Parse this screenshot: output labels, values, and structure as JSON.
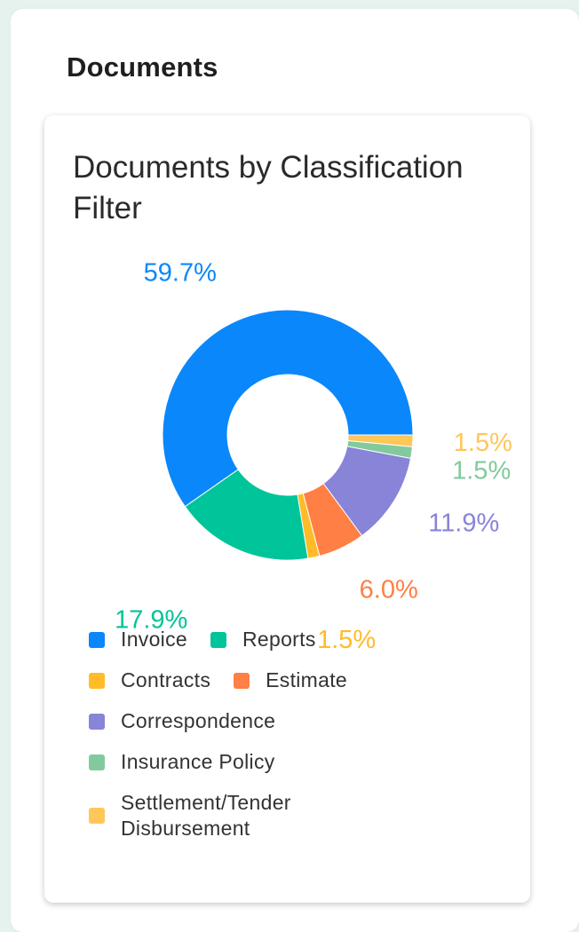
{
  "page": {
    "section_title": "Documents"
  },
  "chart_data": {
    "type": "pie",
    "variant": "donut",
    "title": "Documents by Classification Filter",
    "labels_format": "percent",
    "legend_position": "bottom",
    "slices": [
      {
        "name": "Invoice",
        "value": 59.7,
        "label": "59.7%",
        "color": "#0a87fb"
      },
      {
        "name": "Reports",
        "value": 17.9,
        "label": "17.9%",
        "color": "#00c49a"
      },
      {
        "name": "Contracts",
        "value": 1.5,
        "label": "1.5%",
        "color": "#ffbb28"
      },
      {
        "name": "Estimate",
        "value": 6.0,
        "label": "6.0%",
        "color": "#ff7f45"
      },
      {
        "name": "Correspondence",
        "value": 11.9,
        "label": "11.9%",
        "color": "#8884d8"
      },
      {
        "name": "Insurance Policy",
        "value": 1.5,
        "label": "1.5%",
        "color": "#82ca9d"
      },
      {
        "name": "Settlement/Tender Disbursement",
        "value": 1.5,
        "label": "1.5%",
        "color": "#ffc658"
      }
    ]
  }
}
